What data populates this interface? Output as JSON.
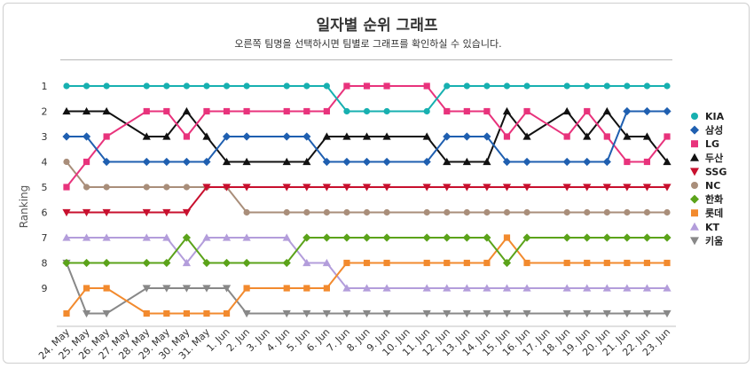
{
  "chart_data": {
    "type": "line",
    "title": "일자별 순위 그래프",
    "subtitle": "오른쪽 팀명을 선택하시면 팀별로 그래프를 확인하실 수 있습니다.",
    "xlabel": "",
    "ylabel": "Ranking",
    "ylim": [
      1,
      10
    ],
    "y_inverted": true,
    "y_ticks": [
      1,
      2,
      3,
      4,
      5,
      6,
      7,
      8,
      9
    ],
    "grid": false,
    "legend_position": "right",
    "categories": [
      "24. May",
      "25. May",
      "26. May",
      "27. May",
      "28. May",
      "29. May",
      "30. May",
      "31. May",
      "1. Jun",
      "2. Jun",
      "3. Jun",
      "4. Jun",
      "5. Jun",
      "6. Jun",
      "7. Jun",
      "8. Jun",
      "9. Jun",
      "10. Jun",
      "11. Jun",
      "12. Jun",
      "13. Jun",
      "14. Jun",
      "15. Jun",
      "16. Jun",
      "17. Jun",
      "18. Jun",
      "19. Jun",
      "20. Jun",
      "21. Jun",
      "22. Jun",
      "23. Jun"
    ],
    "series": [
      {
        "name": "KIA",
        "color": "#17b0b0",
        "marker": "circle",
        "values": [
          1,
          1,
          1,
          null,
          1,
          1,
          1,
          1,
          1,
          1,
          null,
          1,
          1,
          1,
          2,
          2,
          2,
          null,
          2,
          1,
          1,
          1,
          1,
          1,
          null,
          1,
          1,
          1,
          1,
          1,
          1
        ]
      },
      {
        "name": "삼성",
        "color": "#1f5fb0",
        "marker": "diamond",
        "values": [
          3,
          3,
          4,
          null,
          4,
          4,
          4,
          4,
          3,
          3,
          null,
          3,
          3,
          4,
          4,
          4,
          4,
          null,
          4,
          3,
          3,
          3,
          4,
          4,
          null,
          4,
          4,
          4,
          2,
          2,
          2
        ]
      },
      {
        "name": "LG",
        "color": "#e8337c",
        "marker": "square",
        "values": [
          5,
          4,
          3,
          null,
          2,
          2,
          3,
          2,
          2,
          2,
          null,
          2,
          2,
          2,
          1,
          1,
          1,
          null,
          1,
          2,
          2,
          2,
          3,
          2,
          null,
          3,
          2,
          3,
          4,
          4,
          3
        ]
      },
      {
        "name": "두산",
        "color": "#111111",
        "marker": "triangle",
        "values": [
          2,
          2,
          2,
          null,
          3,
          3,
          2,
          3,
          4,
          4,
          null,
          4,
          4,
          3,
          3,
          3,
          3,
          null,
          3,
          4,
          4,
          4,
          2,
          3,
          null,
          2,
          3,
          2,
          3,
          3,
          4
        ]
      },
      {
        "name": "SSG",
        "color": "#c8102e",
        "marker": "triangle-down",
        "values": [
          6,
          6,
          6,
          null,
          6,
          6,
          6,
          5,
          5,
          5,
          null,
          5,
          5,
          5,
          5,
          5,
          5,
          null,
          5,
          5,
          5,
          5,
          5,
          5,
          null,
          5,
          5,
          5,
          5,
          5,
          5
        ]
      },
      {
        "name": "NC",
        "color": "#a98e7a",
        "marker": "circle",
        "values": [
          4,
          5,
          5,
          null,
          5,
          5,
          5,
          5,
          5,
          6,
          null,
          6,
          6,
          6,
          6,
          6,
          6,
          null,
          6,
          6,
          6,
          6,
          6,
          6,
          null,
          6,
          6,
          6,
          6,
          6,
          6
        ]
      },
      {
        "name": "한화",
        "color": "#5ba31a",
        "marker": "diamond",
        "values": [
          8,
          8,
          8,
          null,
          8,
          8,
          7,
          8,
          8,
          8,
          null,
          8,
          7,
          7,
          7,
          7,
          7,
          null,
          7,
          7,
          7,
          7,
          8,
          7,
          null,
          7,
          7,
          7,
          7,
          7,
          7
        ]
      },
      {
        "name": "롯데",
        "color": "#f28a2e",
        "marker": "square",
        "values": [
          10,
          9,
          9,
          null,
          10,
          10,
          10,
          10,
          10,
          9,
          null,
          9,
          9,
          9,
          8,
          8,
          8,
          null,
          8,
          8,
          8,
          8,
          7,
          8,
          null,
          8,
          8,
          8,
          8,
          8,
          8
        ]
      },
      {
        "name": "KT",
        "color": "#b39ddb",
        "marker": "triangle",
        "values": [
          7,
          7,
          7,
          null,
          7,
          7,
          8,
          7,
          7,
          7,
          null,
          7,
          8,
          8,
          9,
          9,
          9,
          null,
          9,
          9,
          9,
          9,
          9,
          9,
          null,
          9,
          9,
          9,
          9,
          9,
          9
        ]
      },
      {
        "name": "키움",
        "color": "#888888",
        "marker": "triangle-down",
        "values": [
          8,
          10,
          10,
          null,
          9,
          9,
          9,
          9,
          9,
          10,
          null,
          10,
          10,
          10,
          10,
          10,
          10,
          null,
          10,
          10,
          10,
          10,
          10,
          10,
          null,
          10,
          10,
          10,
          10,
          10,
          10
        ]
      }
    ]
  }
}
